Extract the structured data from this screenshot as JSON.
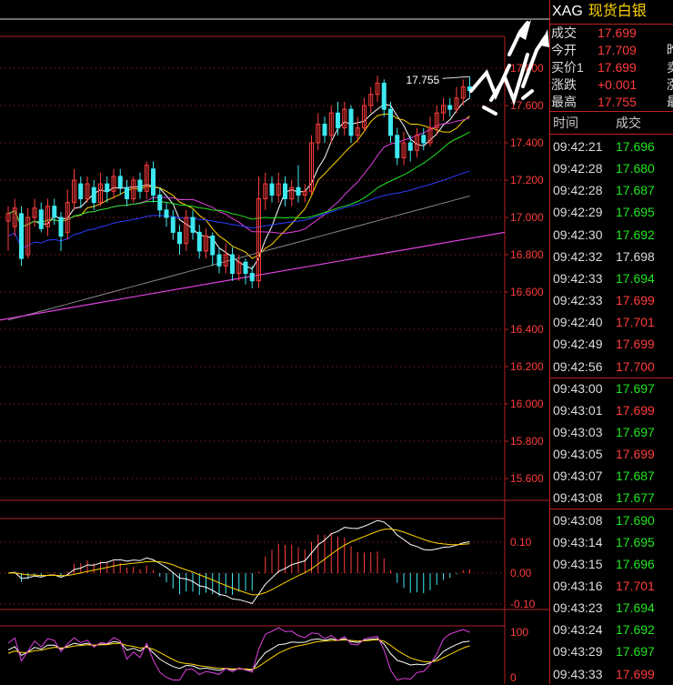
{
  "header": {
    "code": "XAG",
    "name": "现货白银"
  },
  "quote": [
    {
      "label": "成交",
      "value": "17.699",
      "color": "red",
      "cut": ""
    },
    {
      "label": "今开",
      "value": "17.709",
      "color": "red",
      "cut": "昨"
    },
    {
      "label": "买价1",
      "value": "17.699",
      "color": "red",
      "cut": "卖"
    },
    {
      "label": "涨跌",
      "value": "+0.001",
      "color": "red",
      "cut": "涨"
    },
    {
      "label": "最高",
      "value": "17.755",
      "color": "red",
      "cut": "最"
    }
  ],
  "ticks_header": {
    "time": "时间",
    "price": "成交"
  },
  "ticks": [
    {
      "time": "09:42:21",
      "price": "17.696",
      "color": "green"
    },
    {
      "time": "09:42:28",
      "price": "17.680",
      "color": "green"
    },
    {
      "time": "09:42:28",
      "price": "17.687",
      "color": "green"
    },
    {
      "time": "09:42:29",
      "price": "17.695",
      "color": "green"
    },
    {
      "time": "09:42:30",
      "price": "17.692",
      "color": "green"
    },
    {
      "time": "09:42:32",
      "price": "17.698",
      "color": "white"
    },
    {
      "time": "09:42:33",
      "price": "17.694",
      "color": "green"
    },
    {
      "time": "09:42:33",
      "price": "17.699",
      "color": "red"
    },
    {
      "time": "09:42:40",
      "price": "17.701",
      "color": "red"
    },
    {
      "time": "09:42:49",
      "price": "17.699",
      "color": "red"
    },
    {
      "time": "09:42:56",
      "price": "17.700",
      "color": "red"
    },
    {
      "time": "09:43:00",
      "price": "17.697",
      "color": "green"
    },
    {
      "time": "09:43:01",
      "price": "17.699",
      "color": "red"
    },
    {
      "time": "09:43:03",
      "price": "17.697",
      "color": "green"
    },
    {
      "time": "09:43:05",
      "price": "17.699",
      "color": "red"
    },
    {
      "time": "09:43:07",
      "price": "17.687",
      "color": "green"
    },
    {
      "time": "09:43:08",
      "price": "17.677",
      "color": "green"
    },
    {
      "time": "09:43:08",
      "price": "17.690",
      "color": "green"
    },
    {
      "time": "09:43:14",
      "price": "17.695",
      "color": "green"
    },
    {
      "time": "09:43:15",
      "price": "17.696",
      "color": "green"
    },
    {
      "time": "09:43:16",
      "price": "17.701",
      "color": "red"
    },
    {
      "time": "09:43:23",
      "price": "17.694",
      "color": "green"
    },
    {
      "time": "09:43:24",
      "price": "17.692",
      "color": "green"
    },
    {
      "time": "09:43:29",
      "price": "17.697",
      "color": "green"
    },
    {
      "time": "09:43:33",
      "price": "17.699",
      "color": "red"
    }
  ],
  "chart_data": {
    "type": "candlestick",
    "main_axis": {
      "ylim": [
        15.5,
        18.0
      ],
      "tick_labels": [
        "17.800",
        "17.600",
        "17.400",
        "17.200",
        "17.000",
        "16.800",
        "16.600",
        "16.400",
        "16.200",
        "16.000",
        "15.800",
        "15.600"
      ],
      "tick_values": [
        17.8,
        17.6,
        17.4,
        17.2,
        17.0,
        16.8,
        16.6,
        16.4,
        16.2,
        16.0,
        15.8,
        15.6
      ]
    },
    "high_annotation": "17.755",
    "candles": [
      [
        16.98,
        17.02,
        16.82,
        17.06
      ],
      [
        16.95,
        17.05,
        16.9,
        17.1
      ],
      [
        17.02,
        16.78,
        16.74,
        17.06
      ],
      [
        16.8,
        17.0,
        16.78,
        17.05
      ],
      [
        17.0,
        17.05,
        16.95,
        17.1
      ],
      [
        17.04,
        16.94,
        16.92,
        17.08
      ],
      [
        16.95,
        17.06,
        16.9,
        17.1
      ],
      [
        17.06,
        17.0,
        16.96,
        17.1
      ],
      [
        17.0,
        16.9,
        16.82,
        17.03
      ],
      [
        16.92,
        17.08,
        16.88,
        17.15
      ],
      [
        17.08,
        17.2,
        17.04,
        17.26
      ],
      [
        17.18,
        17.1,
        17.05,
        17.22
      ],
      [
        17.1,
        17.18,
        17.08,
        17.22
      ],
      [
        17.16,
        17.08,
        17.04,
        17.2
      ],
      [
        17.08,
        17.18,
        17.06,
        17.24
      ],
      [
        17.18,
        17.14,
        17.08,
        17.22
      ],
      [
        17.14,
        17.22,
        17.1,
        17.26
      ],
      [
        17.22,
        17.16,
        17.12,
        17.26
      ],
      [
        17.16,
        17.1,
        17.06,
        17.2
      ],
      [
        17.1,
        17.2,
        17.08,
        17.22
      ],
      [
        17.2,
        17.14,
        17.1,
        17.24
      ],
      [
        17.14,
        17.28,
        17.1,
        17.3
      ],
      [
        17.26,
        17.12,
        17.08,
        17.3
      ],
      [
        17.12,
        17.04,
        17.0,
        17.16
      ],
      [
        17.04,
        17.0,
        16.95,
        17.08
      ],
      [
        17.0,
        16.92,
        16.88,
        17.04
      ],
      [
        16.92,
        16.86,
        16.8,
        16.96
      ],
      [
        16.86,
        17.0,
        16.82,
        17.04
      ],
      [
        17.0,
        16.92,
        16.88,
        17.04
      ],
      [
        16.92,
        16.82,
        16.78,
        16.96
      ],
      [
        16.82,
        16.9,
        16.78,
        16.94
      ],
      [
        16.9,
        16.8,
        16.74,
        16.92
      ],
      [
        16.8,
        16.74,
        16.7,
        16.84
      ],
      [
        16.74,
        16.8,
        16.7,
        16.86
      ],
      [
        16.8,
        16.7,
        16.66,
        16.84
      ],
      [
        16.7,
        16.76,
        16.66,
        16.8
      ],
      [
        16.76,
        16.7,
        16.64,
        16.78
      ],
      [
        16.7,
        16.66,
        16.62,
        16.74
      ],
      [
        16.66,
        17.1,
        16.62,
        17.22
      ],
      [
        17.1,
        17.18,
        17.04,
        17.24
      ],
      [
        17.18,
        17.12,
        17.08,
        17.22
      ],
      [
        17.12,
        17.18,
        17.08,
        17.24
      ],
      [
        17.18,
        17.1,
        17.06,
        17.22
      ],
      [
        17.1,
        17.16,
        17.06,
        17.2
      ],
      [
        17.16,
        17.12,
        17.08,
        17.28
      ],
      [
        17.12,
        17.14,
        17.08,
        17.18
      ],
      [
        17.14,
        17.4,
        17.12,
        17.44
      ],
      [
        17.4,
        17.5,
        17.36,
        17.56
      ],
      [
        17.5,
        17.44,
        17.4,
        17.54
      ],
      [
        17.44,
        17.56,
        17.4,
        17.6
      ],
      [
        17.56,
        17.48,
        17.44,
        17.62
      ],
      [
        17.48,
        17.58,
        17.44,
        17.62
      ],
      [
        17.58,
        17.44,
        17.4,
        17.6
      ],
      [
        17.44,
        17.48,
        17.4,
        17.54
      ],
      [
        17.48,
        17.6,
        17.46,
        17.64
      ],
      [
        17.6,
        17.66,
        17.56,
        17.7
      ],
      [
        17.66,
        17.72,
        17.62,
        17.76
      ],
      [
        17.72,
        17.58,
        17.54,
        17.74
      ],
      [
        17.58,
        17.44,
        17.4,
        17.62
      ],
      [
        17.44,
        17.32,
        17.28,
        17.48
      ],
      [
        17.32,
        17.4,
        17.28,
        17.46
      ],
      [
        17.4,
        17.36,
        17.3,
        17.44
      ],
      [
        17.36,
        17.44,
        17.32,
        17.48
      ],
      [
        17.44,
        17.4,
        17.36,
        17.48
      ],
      [
        17.4,
        17.48,
        17.38,
        17.54
      ],
      [
        17.48,
        17.56,
        17.44,
        17.6
      ],
      [
        17.56,
        17.6,
        17.52,
        17.64
      ],
      [
        17.6,
        17.58,
        17.54,
        17.64
      ],
      [
        17.58,
        17.64,
        17.56,
        17.7
      ],
      [
        17.64,
        17.7,
        17.6,
        17.74
      ],
      [
        17.7,
        17.68,
        17.64,
        17.755
      ]
    ],
    "macd_axis": {
      "ylim": [
        -0.12,
        0.12
      ],
      "tick_labels": [
        "0.10",
        "0.00",
        "-0.10"
      ],
      "tick_values": [
        0.1,
        0.0,
        -0.1
      ]
    },
    "kdj_axis": {
      "ylim": [
        -5,
        110
      ],
      "tick_labels": [
        "100",
        "0"
      ],
      "tick_values": [
        100,
        0
      ]
    }
  },
  "colors": {
    "up": "#ff3c3c",
    "down": "#3ee8f0",
    "grid": "#b22222",
    "ma5": "#ffffff",
    "ma10": "#ffd400",
    "ma20": "#e040e0",
    "ma30": "#22e622",
    "ma60": "#2b3cff",
    "ma120": "#888888"
  }
}
